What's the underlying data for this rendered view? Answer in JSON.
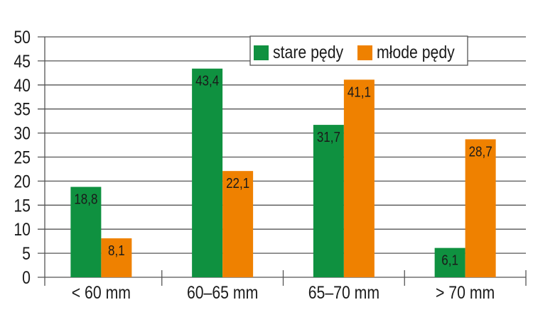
{
  "chart_data": {
    "type": "bar",
    "title": "",
    "xlabel": "",
    "ylabel": "",
    "categories": [
      "< 60 mm",
      "60–65 mm",
      "65–70 mm",
      "> 70 mm"
    ],
    "series": [
      {
        "name": "stare pędy",
        "color": "#0f9140",
        "values": [
          18.8,
          43.4,
          31.7,
          6.1
        ],
        "labels": [
          "18,8",
          "43,4",
          "31,7",
          "6,1"
        ]
      },
      {
        "name": "młode pędy",
        "color": "#ef8100",
        "values": [
          8.1,
          22.1,
          41.1,
          28.7
        ],
        "labels": [
          "8,1",
          "22,1",
          "41,1",
          "28,7"
        ]
      }
    ],
    "ylim": [
      0,
      50
    ],
    "yticks": [
      0,
      5,
      10,
      15,
      20,
      25,
      30,
      35,
      40,
      45,
      50
    ],
    "grid": true,
    "legend_position": "top-right"
  }
}
